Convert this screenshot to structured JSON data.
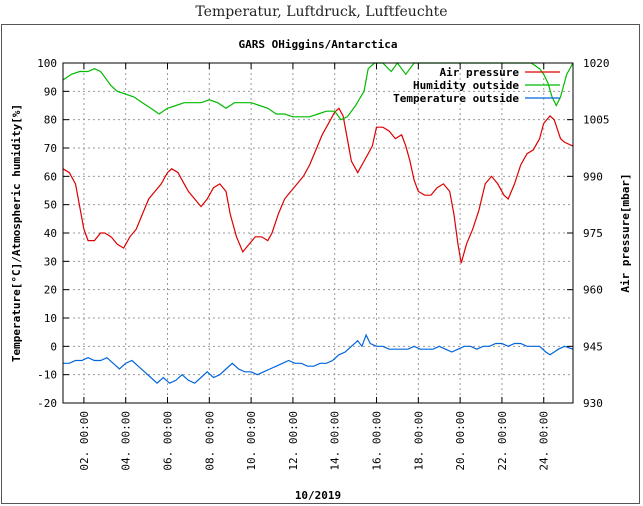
{
  "page": {
    "title": "Temperatur, Luftdruck, Luftfeuchte"
  },
  "chart_data": {
    "type": "line",
    "title": "GARS OHiggins/Antarctica",
    "xlabel": "10/2019",
    "ylabel": "Temperature[°C]/Atmospheric humidity[%]",
    "y2label": "Air pressure[mbar]",
    "xlim": [
      1,
      25.4
    ],
    "ylim": [
      -20,
      100
    ],
    "y2lim": [
      930,
      1020
    ],
    "x_ticks": [
      {
        "day": 2,
        "label": "02. 00:00"
      },
      {
        "day": 4,
        "label": "04. 00:00"
      },
      {
        "day": 6,
        "label": "06. 00:00"
      },
      {
        "day": 8,
        "label": "08. 00:00"
      },
      {
        "day": 10,
        "label": "10. 00:00"
      },
      {
        "day": 12,
        "label": "12. 00:00"
      },
      {
        "day": 14,
        "label": "14. 00:00"
      },
      {
        "day": 16,
        "label": "16. 00:00"
      },
      {
        "day": 18,
        "label": "18. 00:00"
      },
      {
        "day": 20,
        "label": "20. 00:00"
      },
      {
        "day": 22,
        "label": "22. 00:00"
      },
      {
        "day": 24,
        "label": "24. 00:00"
      }
    ],
    "y_ticks": [
      "100",
      "90",
      "80",
      "70",
      "60",
      "50",
      "40",
      "30",
      "20",
      "10",
      "0",
      "-10",
      "-20"
    ],
    "y2_ticks": [
      "1020",
      "1005",
      "990",
      "975",
      "960",
      "945",
      "930"
    ],
    "grid": true,
    "legend_position": "top-right",
    "series": [
      {
        "name": "Air pressure",
        "color": "#dd0000",
        "points": [
          [
            1,
            992
          ],
          [
            1.3,
            991
          ],
          [
            1.6,
            988
          ],
          [
            1.8,
            982
          ],
          [
            2,
            976
          ],
          [
            2.2,
            973
          ],
          [
            2.5,
            973
          ],
          [
            2.8,
            975
          ],
          [
            3,
            975
          ],
          [
            3.3,
            974
          ],
          [
            3.6,
            972
          ],
          [
            3.9,
            971
          ],
          [
            4.2,
            974
          ],
          [
            4.5,
            976
          ],
          [
            4.8,
            980
          ],
          [
            5.1,
            984
          ],
          [
            5.4,
            986
          ],
          [
            5.7,
            988
          ],
          [
            6,
            991
          ],
          [
            6.2,
            992
          ],
          [
            6.5,
            991
          ],
          [
            6.8,
            988
          ],
          [
            7,
            986
          ],
          [
            7.3,
            984
          ],
          [
            7.6,
            982
          ],
          [
            7.9,
            984
          ],
          [
            8.2,
            987
          ],
          [
            8.5,
            988
          ],
          [
            8.8,
            986
          ],
          [
            9,
            980
          ],
          [
            9.3,
            974
          ],
          [
            9.6,
            970
          ],
          [
            9.9,
            972
          ],
          [
            10.2,
            974
          ],
          [
            10.5,
            974
          ],
          [
            10.8,
            973
          ],
          [
            11,
            975
          ],
          [
            11.3,
            980
          ],
          [
            11.6,
            984
          ],
          [
            11.9,
            986
          ],
          [
            12.2,
            988
          ],
          [
            12.5,
            990
          ],
          [
            12.8,
            993
          ],
          [
            13.1,
            997
          ],
          [
            13.4,
            1001
          ],
          [
            13.7,
            1004
          ],
          [
            14,
            1007
          ],
          [
            14.2,
            1008
          ],
          [
            14.4,
            1006
          ],
          [
            14.6,
            1000
          ],
          [
            14.8,
            994
          ],
          [
            15.1,
            991
          ],
          [
            15.3,
            993
          ],
          [
            15.6,
            996
          ],
          [
            15.8,
            998
          ],
          [
            16,
            1003
          ],
          [
            16.3,
            1003
          ],
          [
            16.6,
            1002
          ],
          [
            16.9,
            1000
          ],
          [
            17.2,
            1001
          ],
          [
            17.4,
            998
          ],
          [
            17.6,
            994
          ],
          [
            17.8,
            989
          ],
          [
            18,
            986
          ],
          [
            18.3,
            985
          ],
          [
            18.6,
            985
          ],
          [
            18.9,
            987
          ],
          [
            19.2,
            988
          ],
          [
            19.5,
            986
          ],
          [
            19.7,
            980
          ],
          [
            19.9,
            972
          ],
          [
            20.05,
            967
          ],
          [
            20.3,
            972
          ],
          [
            20.6,
            976
          ],
          [
            20.9,
            981
          ],
          [
            21.2,
            988
          ],
          [
            21.5,
            990
          ],
          [
            21.8,
            988
          ],
          [
            22.1,
            985
          ],
          [
            22.3,
            984
          ],
          [
            22.6,
            988
          ],
          [
            22.9,
            993
          ],
          [
            23.2,
            996
          ],
          [
            23.5,
            997
          ],
          [
            23.8,
            1000
          ],
          [
            24,
            1004
          ],
          [
            24.3,
            1006
          ],
          [
            24.5,
            1005
          ],
          [
            24.8,
            1000
          ],
          [
            25,
            999
          ],
          [
            25.4,
            998
          ]
        ]
      },
      {
        "name": "Humidity outside",
        "color": "#00bb00",
        "points": [
          [
            1,
            94
          ],
          [
            1.4,
            96
          ],
          [
            1.8,
            97
          ],
          [
            2.2,
            97
          ],
          [
            2.5,
            98
          ],
          [
            2.8,
            97
          ],
          [
            3,
            95
          ],
          [
            3.3,
            92
          ],
          [
            3.6,
            90
          ],
          [
            4,
            89
          ],
          [
            4.4,
            88
          ],
          [
            4.8,
            86
          ],
          [
            5.2,
            84
          ],
          [
            5.6,
            82
          ],
          [
            6,
            84
          ],
          [
            6.4,
            85
          ],
          [
            6.8,
            86
          ],
          [
            7.2,
            86
          ],
          [
            7.6,
            86
          ],
          [
            8,
            87
          ],
          [
            8.4,
            86
          ],
          [
            8.8,
            84
          ],
          [
            9.2,
            86
          ],
          [
            9.6,
            86
          ],
          [
            10,
            86
          ],
          [
            10.4,
            85
          ],
          [
            10.8,
            84
          ],
          [
            11.2,
            82
          ],
          [
            11.6,
            82
          ],
          [
            12,
            81
          ],
          [
            12.4,
            81
          ],
          [
            12.8,
            81
          ],
          [
            13.2,
            82
          ],
          [
            13.6,
            83
          ],
          [
            14,
            83
          ],
          [
            14.3,
            80
          ],
          [
            14.6,
            81
          ],
          [
            15,
            85
          ],
          [
            15.4,
            90
          ],
          [
            15.6,
            98
          ],
          [
            15.9,
            100
          ],
          [
            16.3,
            100
          ],
          [
            16.7,
            97
          ],
          [
            17,
            100
          ],
          [
            17.4,
            96
          ],
          [
            17.8,
            100
          ],
          [
            18.2,
            100
          ],
          [
            18.6,
            100
          ],
          [
            19,
            100
          ],
          [
            19.4,
            100
          ],
          [
            19.8,
            100
          ],
          [
            20.2,
            100
          ],
          [
            20.6,
            100
          ],
          [
            21,
            100
          ],
          [
            21.4,
            100
          ],
          [
            21.8,
            100
          ],
          [
            22.2,
            100
          ],
          [
            22.6,
            100
          ],
          [
            23,
            100
          ],
          [
            23.4,
            100
          ],
          [
            23.8,
            98
          ],
          [
            24,
            96
          ],
          [
            24.2,
            93
          ],
          [
            24.4,
            88
          ],
          [
            24.6,
            85
          ],
          [
            24.8,
            88
          ],
          [
            25.1,
            96
          ],
          [
            25.4,
            100
          ]
        ]
      },
      {
        "name": "Temperature outside",
        "color": "#0066dd",
        "points": [
          [
            1,
            -6
          ],
          [
            1.3,
            -6
          ],
          [
            1.6,
            -5
          ],
          [
            1.9,
            -5
          ],
          [
            2.2,
            -4
          ],
          [
            2.5,
            -5
          ],
          [
            2.8,
            -5
          ],
          [
            3.1,
            -4
          ],
          [
            3.4,
            -6
          ],
          [
            3.7,
            -8
          ],
          [
            4,
            -6
          ],
          [
            4.3,
            -5
          ],
          [
            4.6,
            -7
          ],
          [
            4.9,
            -9
          ],
          [
            5.2,
            -11
          ],
          [
            5.5,
            -13
          ],
          [
            5.8,
            -11
          ],
          [
            6.1,
            -13
          ],
          [
            6.4,
            -12
          ],
          [
            6.7,
            -10
          ],
          [
            7,
            -12
          ],
          [
            7.3,
            -13
          ],
          [
            7.6,
            -11
          ],
          [
            7.9,
            -9
          ],
          [
            8.2,
            -11
          ],
          [
            8.5,
            -10
          ],
          [
            8.8,
            -8
          ],
          [
            9.1,
            -6
          ],
          [
            9.4,
            -8
          ],
          [
            9.7,
            -9
          ],
          [
            10,
            -9
          ],
          [
            10.3,
            -10
          ],
          [
            10.6,
            -9
          ],
          [
            10.9,
            -8
          ],
          [
            11.2,
            -7
          ],
          [
            11.5,
            -6
          ],
          [
            11.8,
            -5
          ],
          [
            12.1,
            -6
          ],
          [
            12.4,
            -6
          ],
          [
            12.7,
            -7
          ],
          [
            13,
            -7
          ],
          [
            13.3,
            -6
          ],
          [
            13.6,
            -6
          ],
          [
            13.9,
            -5
          ],
          [
            14.2,
            -3
          ],
          [
            14.5,
            -2
          ],
          [
            14.8,
            0
          ],
          [
            15.1,
            2
          ],
          [
            15.3,
            0
          ],
          [
            15.5,
            4
          ],
          [
            15.7,
            1
          ],
          [
            16,
            0
          ],
          [
            16.3,
            0
          ],
          [
            16.6,
            -1
          ],
          [
            16.9,
            -1
          ],
          [
            17.2,
            -1
          ],
          [
            17.5,
            -1
          ],
          [
            17.8,
            0
          ],
          [
            18.1,
            -1
          ],
          [
            18.4,
            -1
          ],
          [
            18.7,
            -1
          ],
          [
            19,
            0
          ],
          [
            19.3,
            -1
          ],
          [
            19.6,
            -2
          ],
          [
            19.9,
            -1
          ],
          [
            20.2,
            0
          ],
          [
            20.5,
            0
          ],
          [
            20.8,
            -1
          ],
          [
            21.1,
            0
          ],
          [
            21.4,
            0
          ],
          [
            21.7,
            1
          ],
          [
            22,
            1
          ],
          [
            22.3,
            0
          ],
          [
            22.6,
            1
          ],
          [
            22.9,
            1
          ],
          [
            23.2,
            0
          ],
          [
            23.5,
            0
          ],
          [
            23.8,
            0
          ],
          [
            24.1,
            -2
          ],
          [
            24.3,
            -3
          ],
          [
            24.5,
            -2
          ],
          [
            24.7,
            -1
          ],
          [
            25,
            0
          ],
          [
            25.4,
            -1
          ]
        ]
      }
    ]
  }
}
